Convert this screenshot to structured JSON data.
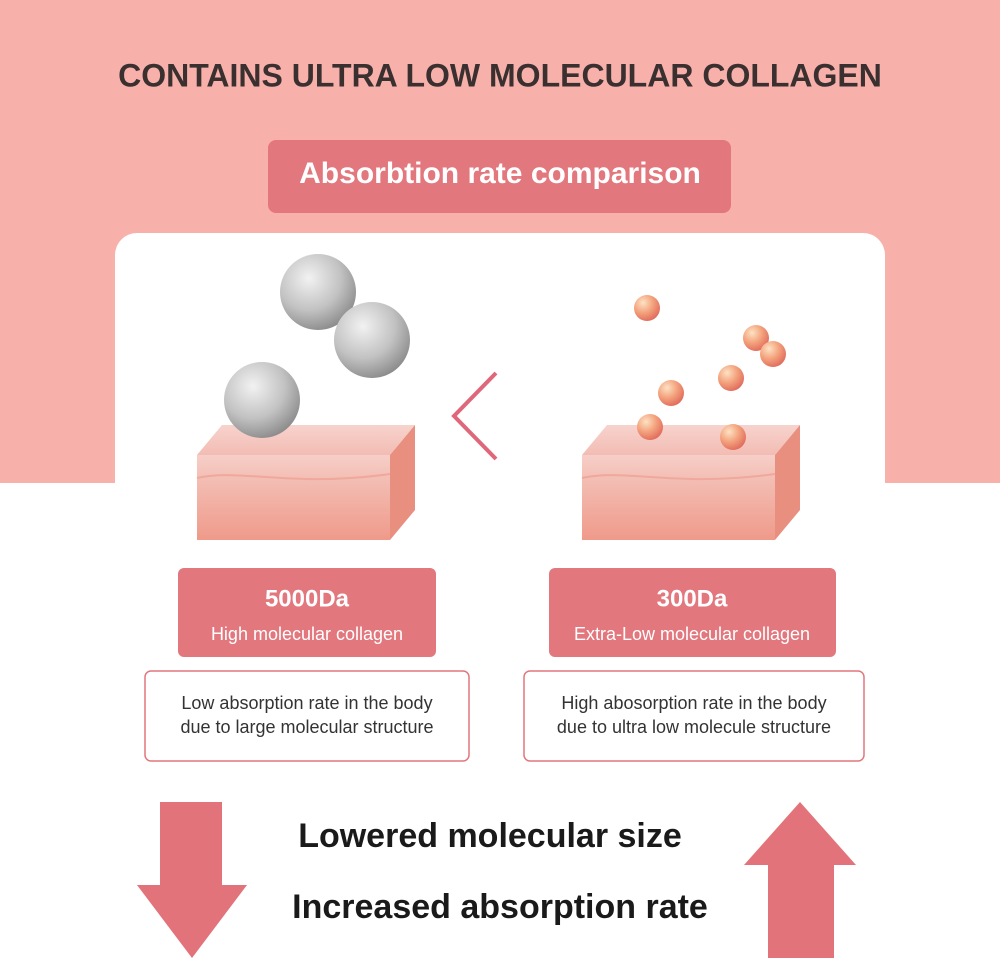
{
  "header": {
    "title": "CONTAINS ULTRA LOW MOLECULAR COLLAGEN",
    "badge": "Absorbtion rate comparison"
  },
  "left": {
    "size": "5000Da",
    "label": "High molecular collagen",
    "description": [
      "Low absorption rate in the body",
      "due to large molecular structure"
    ]
  },
  "right": {
    "size": "300Da",
    "label": "Extra-Low molecular collagen",
    "description": [
      "High abosorption rate in the body",
      "due to ultra low molecule structure"
    ]
  },
  "footer": {
    "lines": [
      "Lowered molecular size",
      "Increased absorption rate"
    ]
  }
}
